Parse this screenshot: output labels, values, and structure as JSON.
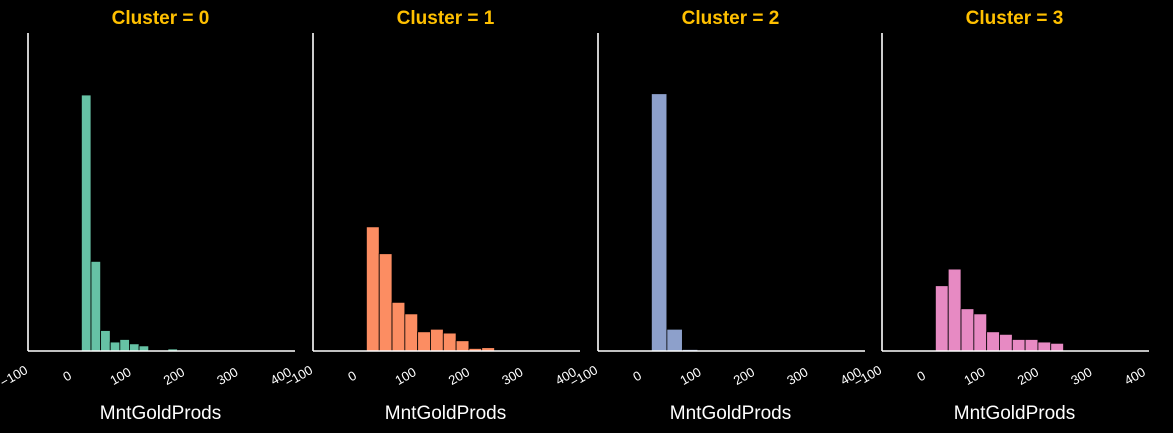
{
  "theme": {
    "background": "#000000",
    "axis_color": "#ffffff",
    "title_color": "#ffc000"
  },
  "chart_data": [
    {
      "type": "bar",
      "title": "Cluster = 0",
      "xlabel": "MntGoldProds",
      "ylabel": "",
      "color": "#66c2a5",
      "xlim": [
        -100,
        400
      ],
      "xticks": [
        "-100",
        "0",
        "100",
        "200",
        "300",
        "400"
      ],
      "bin_edges": [
        0,
        18,
        36,
        54,
        72,
        90,
        108,
        126,
        144,
        162,
        180,
        198
      ],
      "values": [
        100,
        35,
        8,
        3.5,
        4.5,
        2.8,
        2.0,
        0.3,
        0.3,
        0.8,
        0.3
      ],
      "grid": false
    },
    {
      "type": "bar",
      "title": "Cluster = 1",
      "xlabel": "MntGoldProds",
      "ylabel": "",
      "color": "#fc8d62",
      "xlim": [
        -100,
        400
      ],
      "xticks": [
        "-100",
        "0",
        "100",
        "200",
        "300",
        "400"
      ],
      "bin_edges": [
        0,
        24,
        48,
        72,
        96,
        120,
        144,
        168,
        192,
        216,
        240
      ],
      "values": [
        48.5,
        38,
        19,
        14.5,
        7.5,
        8.5,
        7,
        4,
        1,
        1.3
      ],
      "grid": false
    },
    {
      "type": "bar",
      "title": "Cluster = 2",
      "xlabel": "MntGoldProds",
      "ylabel": "",
      "color": "#8da0cb",
      "xlim": [
        -100,
        400
      ],
      "xticks": [
        "-100",
        "0",
        "100",
        "200",
        "300",
        "400"
      ],
      "bin_edges": [
        0,
        29,
        58,
        87,
        116,
        145,
        174,
        203,
        232,
        261,
        290,
        319
      ],
      "values": [
        100.5,
        8.5,
        0.6,
        0.3,
        0.1,
        0.1,
        0.1,
        0.1,
        0.1,
        0.1,
        0.1
      ],
      "grid": false
    },
    {
      "type": "bar",
      "title": "Cluster = 3",
      "xlabel": "MntGoldProds",
      "ylabel": "",
      "color": "#e78ac3",
      "xlim": [
        -100,
        400
      ],
      "xticks": [
        "-100",
        "0",
        "100",
        "200",
        "300",
        "400"
      ],
      "bin_edges": [
        0,
        24,
        48,
        72,
        96,
        120,
        144,
        168,
        192,
        216,
        240
      ],
      "values": [
        25.5,
        32,
        16.5,
        14.5,
        7.5,
        6.5,
        4.5,
        4.5,
        3.5,
        3
      ],
      "grid": false
    }
  ]
}
